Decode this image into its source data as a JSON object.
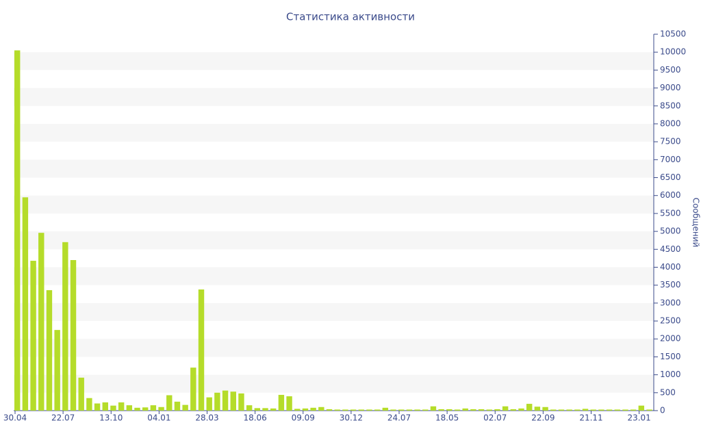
{
  "chart_data": {
    "type": "bar",
    "title": "Статистика активности",
    "y_axis_label": "Сообщений",
    "categories": [
      "30.04",
      null,
      null,
      null,
      null,
      null,
      "22.07",
      null,
      null,
      null,
      null,
      null,
      "13.10",
      null,
      null,
      null,
      null,
      null,
      "04.01",
      null,
      null,
      null,
      null,
      null,
      "28.03",
      null,
      null,
      null,
      null,
      null,
      "18.06",
      null,
      null,
      null,
      null,
      null,
      "09.09",
      null,
      null,
      null,
      null,
      null,
      "30.12",
      null,
      null,
      null,
      null,
      null,
      "24.07",
      null,
      null,
      null,
      null,
      null,
      "18.05",
      null,
      null,
      null,
      null,
      null,
      "02.07",
      null,
      null,
      null,
      null,
      null,
      "22.09",
      null,
      null,
      null,
      null,
      null,
      "21.11",
      null,
      null,
      null,
      null,
      null,
      "23.01",
      null
    ],
    "values": [
      10050,
      5950,
      4180,
      4960,
      3360,
      2250,
      4700,
      4200,
      920,
      350,
      200,
      230,
      140,
      230,
      150,
      80,
      90,
      150,
      100,
      430,
      250,
      160,
      1200,
      3380,
      370,
      500,
      560,
      530,
      480,
      150,
      70,
      70,
      60,
      440,
      400,
      50,
      60,
      80,
      100,
      40,
      30,
      30,
      30,
      30,
      30,
      30,
      80,
      30,
      30,
      30,
      30,
      30,
      120,
      40,
      40,
      30,
      60,
      40,
      40,
      30,
      40,
      120,
      40,
      60,
      190,
      110,
      100,
      30,
      30,
      30,
      30,
      50,
      30,
      30,
      30,
      30,
      30,
      30,
      140,
      30
    ],
    "color": "#b5dc2a",
    "ylim": [
      0,
      10500
    ],
    "yticks": [
      0,
      500,
      1000,
      1500,
      2000,
      2500,
      3000,
      3500,
      4000,
      4500,
      5000,
      5500,
      6000,
      6500,
      7000,
      7500,
      8000,
      8500,
      9000,
      9500,
      10000,
      10500
    ],
    "grid": "alternate-bands",
    "y_axis_side": "right"
  }
}
